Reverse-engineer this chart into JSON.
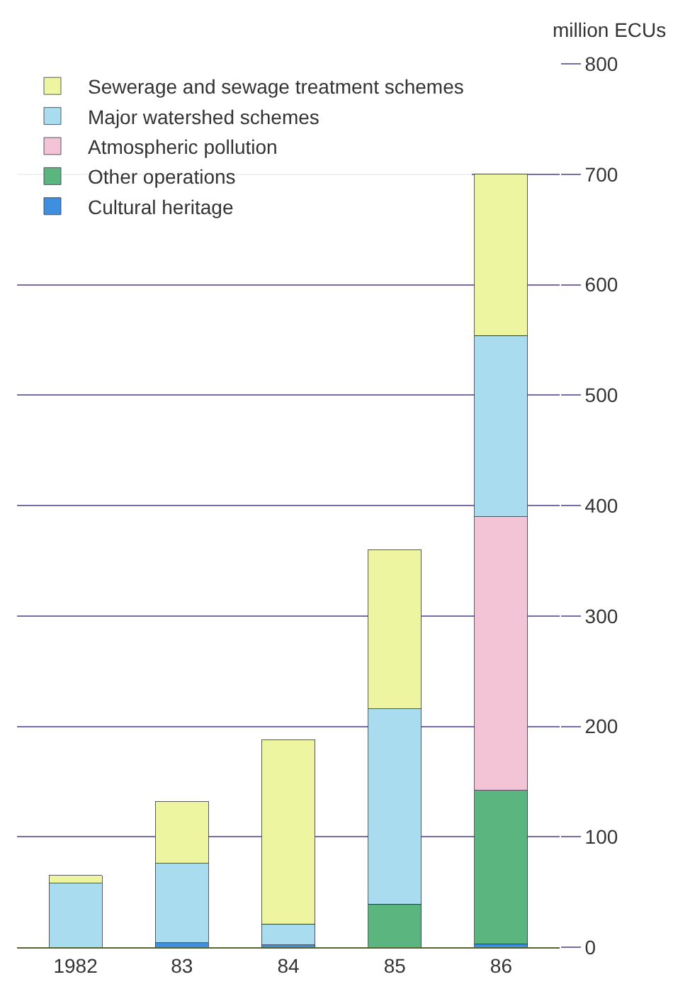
{
  "chart_data": {
    "type": "bar",
    "stacked": true,
    "ylabel": "million ECUs",
    "categories": [
      "1982",
      "83",
      "84",
      "85",
      "86"
    ],
    "series": [
      {
        "name": "Cultural heritage",
        "color": "#3f8fe0",
        "values": [
          0,
          4,
          2,
          0,
          3
        ]
      },
      {
        "name": "Other operations",
        "color": "#5bb57e",
        "values": [
          0,
          0,
          0,
          39,
          139
        ]
      },
      {
        "name": "Atmospheric pollution",
        "color": "#f2c4d6",
        "values": [
          0,
          0,
          0,
          0,
          248
        ]
      },
      {
        "name": "Major watershed schemes",
        "color": "#a9dcef",
        "values": [
          58,
          72,
          19,
          177,
          164
        ]
      },
      {
        "name": "Sewerage and sewage treatment schemes",
        "color": "#eef5a0",
        "values": [
          7,
          56,
          167,
          144,
          146
        ]
      }
    ],
    "ylim": [
      0,
      800
    ],
    "yticks": [
      0,
      100,
      200,
      300,
      400,
      500,
      600,
      700,
      800
    ],
    "grid": "y",
    "legend": "top left"
  }
}
